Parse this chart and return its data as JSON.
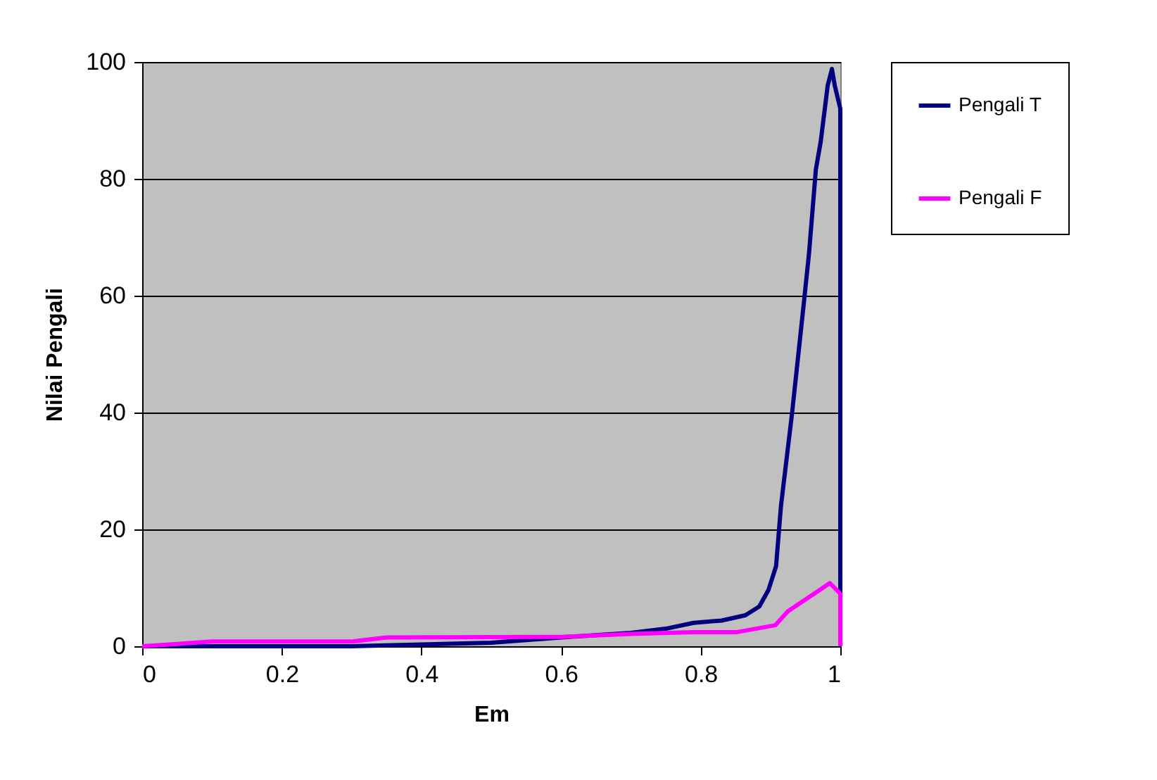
{
  "chart_data": {
    "type": "line",
    "xlabel": "Em",
    "ylabel": "Nilai Pengali",
    "xlim": [
      0,
      1
    ],
    "xticks": [
      0,
      0.2,
      0.4,
      0.6,
      0.8,
      1
    ],
    "ylim": [
      0,
      100
    ],
    "yticks": [
      0,
      20,
      40,
      60,
      80,
      100
    ],
    "grid": "y",
    "legend": "right",
    "marker": "none",
    "line_style": "solid",
    "series": [
      {
        "name": "Pengali T",
        "color": "#000080",
        "x": [
          0,
          0.3,
          0.4,
          0.5,
          0.6,
          0.7,
          0.75,
          0.79,
          0.83,
          0.864,
          0.884,
          0.897,
          0.908,
          0.915,
          0.931,
          0.948,
          0.955,
          0.965,
          0.972,
          0.982,
          0.988,
          0.992,
          1,
          1
        ],
        "values": [
          0,
          0,
          0.3,
          0.6,
          1.5,
          2.3,
          3,
          4,
          4.4,
          5.3,
          6.8,
          9.6,
          13.7,
          24,
          40,
          59,
          67,
          81.6,
          86.4,
          96,
          98.8,
          96,
          92,
          0
        ]
      },
      {
        "name": "Pengali F",
        "color": "#ff00ff",
        "x": [
          0,
          0.1,
          0.3,
          0.35,
          0.6,
          0.7,
          0.79,
          0.851,
          0.907,
          0.925,
          0.965,
          0.985,
          0.995,
          1,
          1
        ],
        "values": [
          0,
          0.8,
          0.8,
          1.5,
          1.6,
          2.1,
          2.4,
          2.4,
          3.6,
          6,
          9.2,
          10.8,
          9.6,
          9,
          0
        ]
      }
    ]
  }
}
